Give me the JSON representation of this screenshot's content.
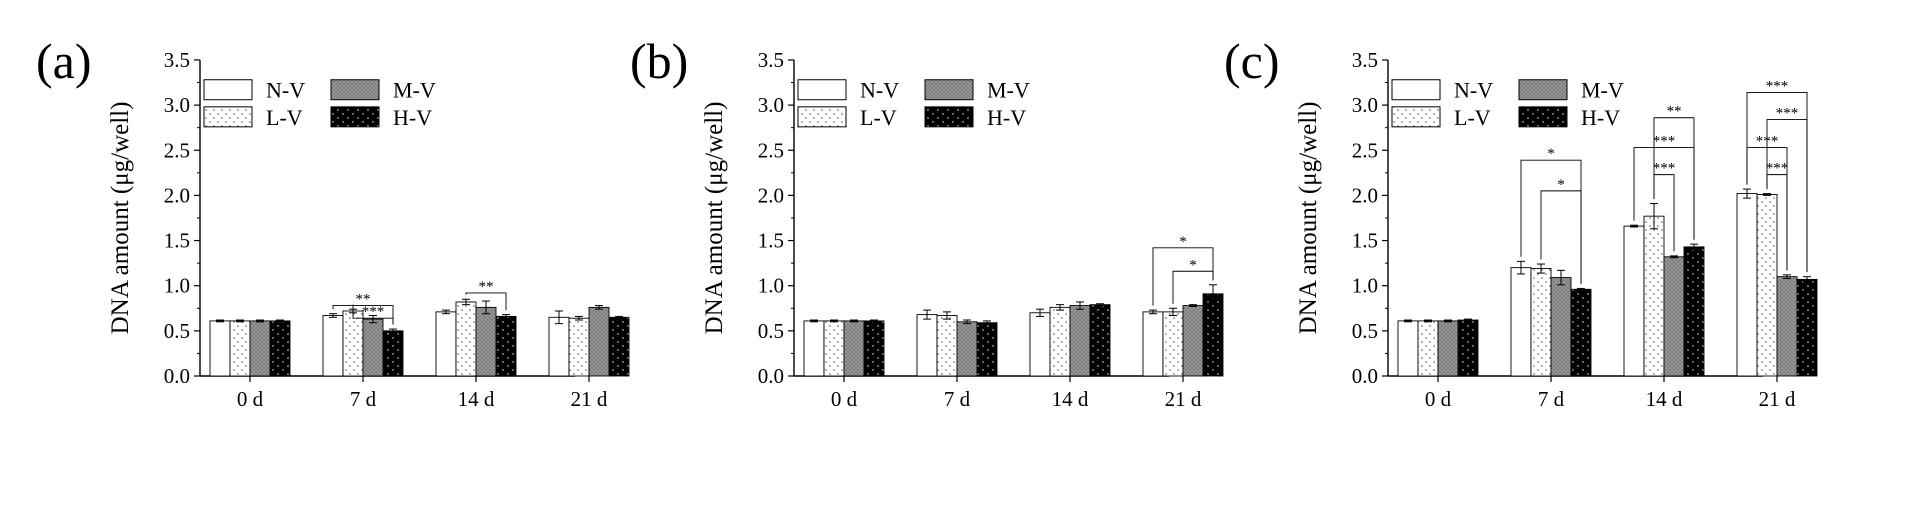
{
  "legend": [
    "N-V",
    "L-V",
    "M-V",
    "H-V"
  ],
  "colors": {
    "N-V": "#ffffff",
    "L-V": "#ffffff",
    "M-V": "#9a9a9a",
    "H-V": "#000000",
    "axis": "#000000"
  },
  "chart_data": [
    {
      "type": "bar",
      "panel_label": "(a)",
      "ylabel": "DNA amount (μg/well)",
      "ylim": [
        0,
        3.5
      ],
      "yticks": [
        "0.0",
        "0.5",
        "1.0",
        "1.5",
        "2.0",
        "2.5",
        "3.0",
        "3.5"
      ],
      "categories": [
        "0 d",
        "7 d",
        "14 d",
        "21 d"
      ],
      "legend_position": "top-left",
      "series": [
        {
          "name": "N-V",
          "values": [
            0.61,
            0.67,
            0.71,
            0.65
          ],
          "errors": [
            0.01,
            0.02,
            0.02,
            0.07
          ]
        },
        {
          "name": "L-V",
          "values": [
            0.61,
            0.72,
            0.82,
            0.64
          ],
          "errors": [
            0.01,
            0.02,
            0.03,
            0.02
          ]
        },
        {
          "name": "M-V",
          "values": [
            0.61,
            0.63,
            0.76,
            0.76
          ],
          "errors": [
            0.01,
            0.04,
            0.07,
            0.02
          ]
        },
        {
          "name": "H-V",
          "values": [
            0.61,
            0.5,
            0.66,
            0.65
          ],
          "errors": [
            0.01,
            0.02,
            0.02,
            0.01
          ]
        }
      ],
      "significance": [
        {
          "category": "7 d",
          "from": "N-V",
          "to": "H-V",
          "label": "**",
          "y": 0.78
        },
        {
          "category": "7 d",
          "from": "L-V",
          "to": "H-V",
          "label": "***",
          "y": 0.64
        },
        {
          "category": "14 d",
          "from": "L-V",
          "to": "H-V",
          "label": "**",
          "y": 0.92
        }
      ]
    },
    {
      "type": "bar",
      "panel_label": "(b)",
      "ylabel": "DNA amount (μg/well)",
      "ylim": [
        0,
        3.5
      ],
      "yticks": [
        "0.0",
        "0.5",
        "1.0",
        "1.5",
        "2.0",
        "2.5",
        "3.0",
        "3.5"
      ],
      "categories": [
        "0 d",
        "7 d",
        "14 d",
        "21 d"
      ],
      "legend_position": "top-left",
      "series": [
        {
          "name": "N-V",
          "values": [
            0.61,
            0.68,
            0.7,
            0.71
          ],
          "errors": [
            0.01,
            0.05,
            0.04,
            0.02
          ]
        },
        {
          "name": "L-V",
          "values": [
            0.61,
            0.67,
            0.76,
            0.71
          ],
          "errors": [
            0.01,
            0.04,
            0.03,
            0.04
          ]
        },
        {
          "name": "M-V",
          "values": [
            0.61,
            0.6,
            0.78,
            0.78
          ],
          "errors": [
            0.01,
            0.02,
            0.04,
            0.01
          ]
        },
        {
          "name": "H-V",
          "values": [
            0.61,
            0.59,
            0.79,
            0.91
          ],
          "errors": [
            0.01,
            0.02,
            0.01,
            0.1
          ]
        }
      ],
      "significance": [
        {
          "category": "21 d",
          "from": "N-V",
          "to": "H-V",
          "label": "*",
          "y": 1.42
        },
        {
          "category": "21 d",
          "from": "L-V",
          "to": "H-V",
          "label": "*",
          "y": 1.16
        }
      ]
    },
    {
      "type": "bar",
      "panel_label": "(c)",
      "ylabel": "DNA amount (μg/well)",
      "ylim": [
        0,
        3.5
      ],
      "yticks": [
        "0.0",
        "0.5",
        "1.0",
        "1.5",
        "2.0",
        "2.5",
        "3.0",
        "3.5"
      ],
      "categories": [
        "0 d",
        "7 d",
        "14 d",
        "21 d"
      ],
      "legend_position": "top-left",
      "series": [
        {
          "name": "N-V",
          "values": [
            0.61,
            1.2,
            1.66,
            2.02
          ],
          "errors": [
            0.01,
            0.07,
            0.01,
            0.05
          ]
        },
        {
          "name": "L-V",
          "values": [
            0.61,
            1.19,
            1.77,
            2.01
          ],
          "errors": [
            0.01,
            0.05,
            0.14,
            0.01
          ]
        },
        {
          "name": "M-V",
          "values": [
            0.61,
            1.09,
            1.32,
            1.1
          ],
          "errors": [
            0.01,
            0.08,
            0.01,
            0.02
          ]
        },
        {
          "name": "H-V",
          "values": [
            0.62,
            0.96,
            1.43,
            1.07
          ],
          "errors": [
            0.01,
            0.01,
            0.03,
            0.03
          ]
        }
      ],
      "significance": [
        {
          "category": "7 d",
          "from": "N-V",
          "to": "H-V",
          "label": "*",
          "y": 2.39
        },
        {
          "category": "7 d",
          "from": "L-V",
          "to": "H-V",
          "label": "*",
          "y": 2.05
        },
        {
          "category": "14 d",
          "from": "L-V",
          "to": "H-V",
          "label": "**",
          "y": 2.86
        },
        {
          "category": "14 d",
          "from": "N-V",
          "to": "H-V",
          "label": "***",
          "y": 2.53
        },
        {
          "category": "14 d",
          "from": "L-V",
          "to": "M-V",
          "label": "***",
          "y": 2.23
        },
        {
          "category": "21 d",
          "from": "N-V",
          "to": "H-V",
          "label": "***",
          "y": 3.14
        },
        {
          "category": "21 d",
          "from": "L-V",
          "to": "H-V",
          "label": "***",
          "y": 2.84
        },
        {
          "category": "21 d",
          "from": "N-V",
          "to": "M-V",
          "label": "***",
          "y": 2.53
        },
        {
          "category": "21 d",
          "from": "L-V",
          "to": "M-V",
          "label": "***",
          "y": 2.23
        }
      ]
    }
  ]
}
